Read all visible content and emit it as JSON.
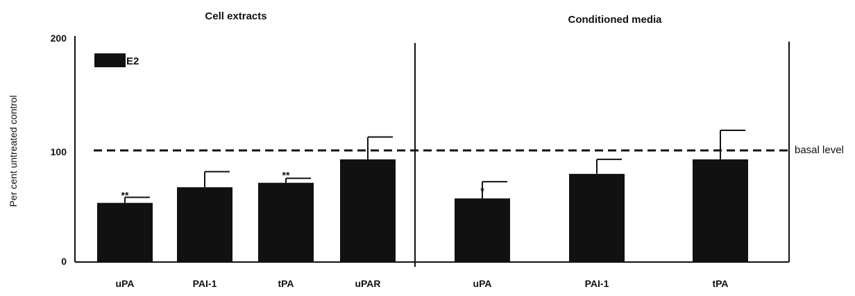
{
  "chart_data": {
    "type": "bar",
    "ylabel": "Per cent untreated control",
    "ylim": [
      0,
      200
    ],
    "yticks": [
      "0",
      "100",
      "200"
    ],
    "legend": {
      "label": "E2",
      "placement": "top-left"
    },
    "reference_line": {
      "label": "basal level",
      "y": 100,
      "style": "dashed"
    },
    "panels": [
      {
        "title": "Cell extracts",
        "categories": [
          "uPA",
          "PAI-1",
          "tPA",
          "uPAR"
        ],
        "series": [
          {
            "name": "E2",
            "values": [
              53,
              67,
              71,
              92
            ],
            "errors": [
              5,
              14,
              4,
              20
            ]
          }
        ],
        "significance": [
          "**",
          "",
          "**",
          ""
        ]
      },
      {
        "title": "Conditioned media",
        "categories": [
          "uPA",
          "PAI-1",
          "tPA"
        ],
        "series": [
          {
            "name": "E2",
            "values": [
              57,
              79,
              92
            ],
            "errors": [
              15,
              13,
              26
            ]
          }
        ],
        "significance": [
          "*",
          "",
          ""
        ]
      }
    ]
  }
}
